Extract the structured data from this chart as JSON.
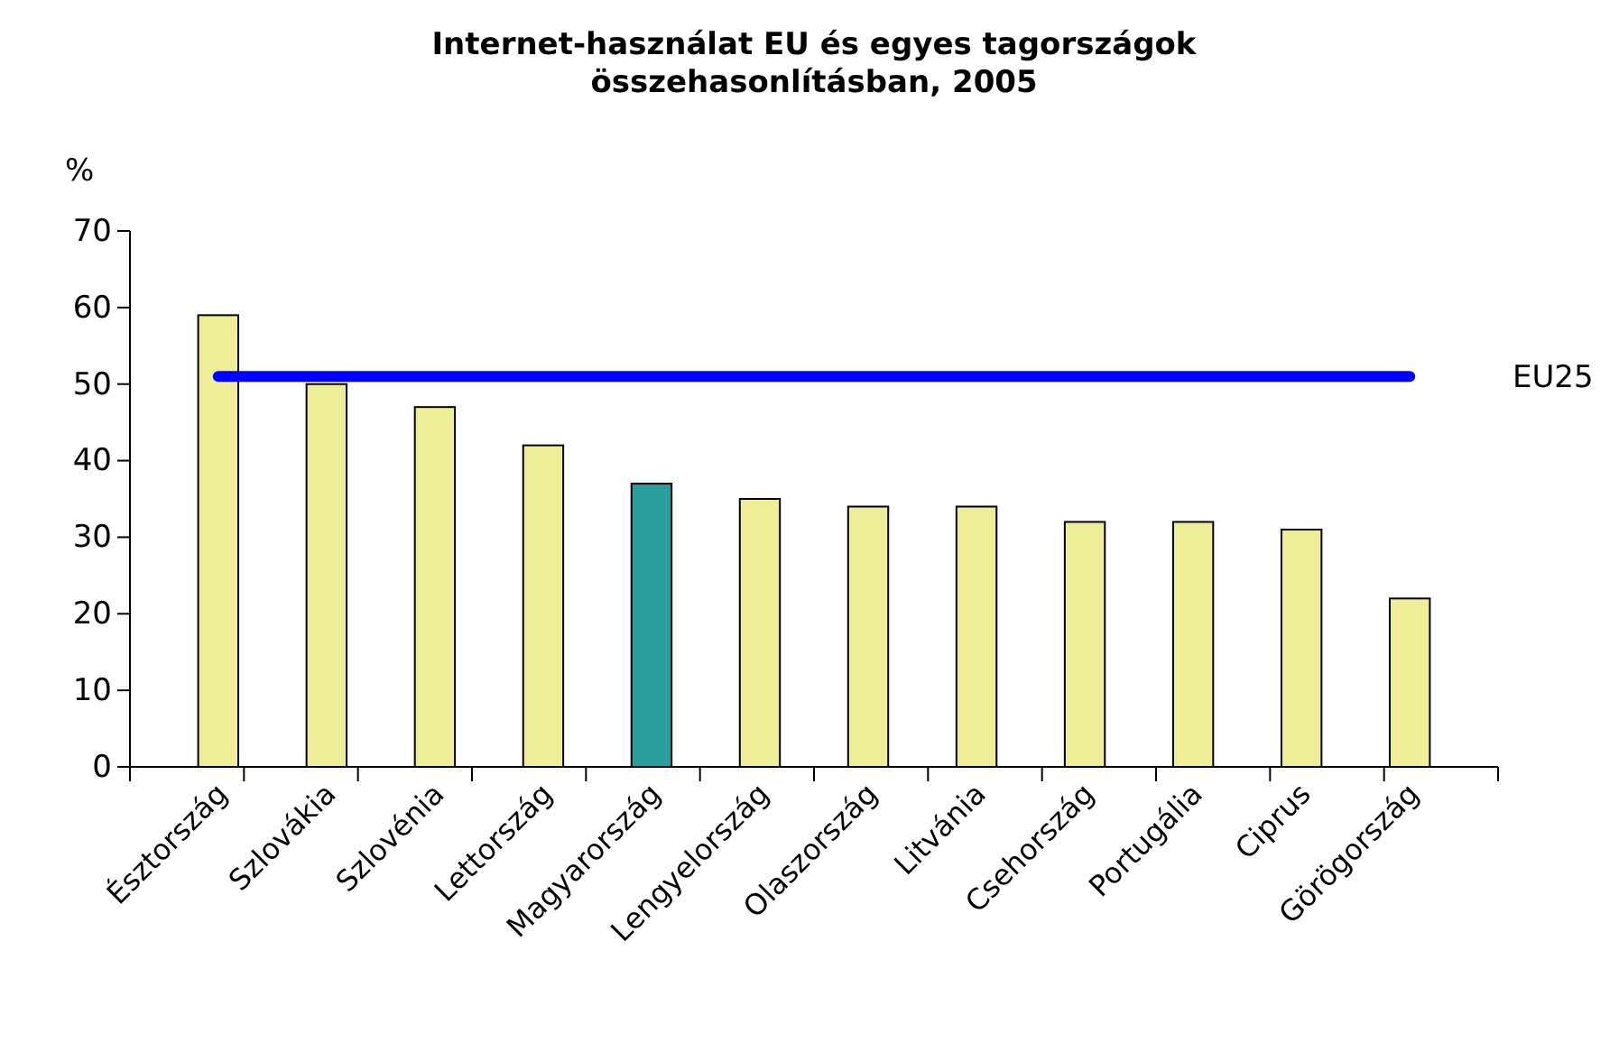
{
  "chart_data": {
    "type": "bar",
    "title": "Internet-használat EU és egyes tagországok összehasonlításban, 2005",
    "ylabel": "%",
    "categories": [
      "Észtország",
      "Szlovákia",
      "Szlovénia",
      "Lettország",
      "Magyarország",
      "Lengyelország",
      "Olaszország",
      "Litvánia",
      "Csehország",
      "Portugália",
      "Ciprus",
      "Görögország"
    ],
    "series": [
      {
        "values": [
          59,
          50,
          47,
          42,
          37,
          35,
          34,
          34,
          32,
          32,
          31,
          22
        ],
        "colors": [
          "#eeee99",
          "#eeee99",
          "#eeee99",
          "#eeee99",
          "#2a9d9d",
          "#eeee99",
          "#eeee99",
          "#eeee99",
          "#eeee99",
          "#eeee99",
          "#eeee99",
          "#eeee99"
        ]
      },
      {
        "type": "line",
        "name": "EU25",
        "color": "#0000ff",
        "values": [
          51,
          51,
          51,
          51,
          51,
          51,
          51,
          51,
          51,
          51,
          51,
          51
        ]
      }
    ],
    "ylim": [
      0,
      70
    ],
    "yticks": [
      0,
      10,
      20,
      30,
      40,
      50,
      60,
      70
    ],
    "grid": false
  }
}
